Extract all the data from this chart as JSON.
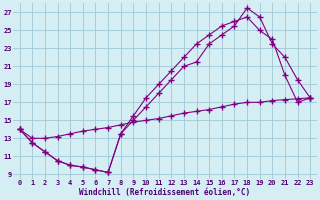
{
  "xlabel": "Windchill (Refroidissement éolien,°C)",
  "bg_color": "#d4eef4",
  "grid_color": "#a0c8d8",
  "line_color": "#800080",
  "xlim": [
    0,
    23
  ],
  "ylim": [
    9,
    27
  ],
  "yticks": [
    9,
    11,
    13,
    15,
    17,
    19,
    21,
    23,
    25,
    27
  ],
  "line1_x": [
    0,
    1,
    2,
    3,
    4,
    5,
    6,
    7,
    8,
    9,
    10,
    11,
    12,
    13,
    14,
    15,
    16,
    17,
    18,
    19,
    20,
    21,
    22,
    23
  ],
  "line1_y": [
    14.0,
    13.0,
    13.0,
    13.2,
    13.5,
    13.8,
    14.0,
    14.2,
    14.5,
    14.8,
    15.0,
    15.2,
    15.5,
    15.8,
    16.0,
    16.2,
    16.5,
    16.8,
    17.0,
    17.0,
    17.2,
    17.3,
    17.4,
    17.5
  ],
  "line2_x": [
    0,
    1,
    2,
    3,
    4,
    5,
    6,
    7,
    8,
    9,
    10,
    11,
    12,
    13,
    14,
    15,
    16,
    17,
    18,
    19,
    20,
    21,
    22,
    23
  ],
  "line2_y": [
    14.0,
    12.5,
    11.5,
    10.5,
    10.0,
    9.8,
    9.5,
    9.2,
    13.5,
    15.5,
    17.5,
    19.0,
    20.5,
    22.0,
    23.5,
    24.5,
    25.5,
    26.0,
    26.5,
    25.0,
    24.0,
    20.0,
    17.0,
    17.5
  ],
  "line3_x": [
    0,
    1,
    2,
    3,
    4,
    5,
    6,
    7,
    8,
    9,
    10,
    11,
    12,
    13,
    14,
    15,
    16,
    17,
    18,
    19,
    20,
    21,
    22,
    23
  ],
  "line3_y": [
    14.0,
    12.5,
    11.5,
    10.5,
    10.0,
    9.8,
    9.5,
    9.2,
    13.5,
    15.0,
    16.5,
    18.0,
    19.5,
    21.0,
    21.5,
    23.5,
    24.5,
    25.5,
    27.5,
    26.5,
    23.5,
    22.0,
    19.5,
    17.5
  ]
}
